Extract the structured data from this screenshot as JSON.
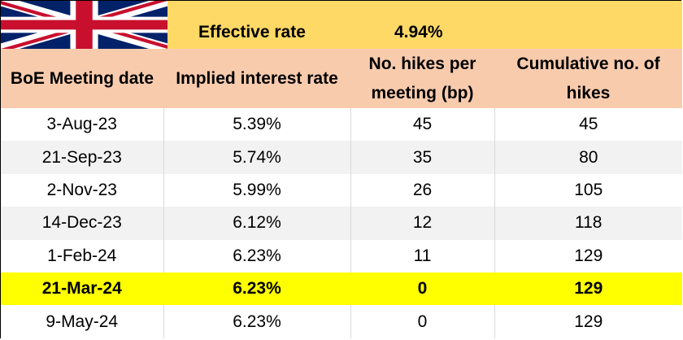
{
  "header": {
    "effective_rate_label": "Effective rate",
    "effective_rate_value": "4.94%"
  },
  "flag": {
    "country": "United Kingdom",
    "icon": "uk-flag-icon",
    "colors": {
      "blue": "#012169",
      "red": "#c8102e",
      "white": "#ffffff"
    }
  },
  "colors": {
    "banner": "#ffd966",
    "header": "#f8cbad",
    "stripe": "#f2f2f2",
    "highlight": "#ffff00"
  },
  "columns": [
    "BoE Meeting date",
    "Implied interest rate",
    "No. hikes per meeting (bp)",
    "Cumulative no. of hikes"
  ],
  "rows": [
    {
      "date": "3-Aug-23",
      "rate": "5.39%",
      "hikes": "45",
      "cumulative": "45",
      "highlight": false
    },
    {
      "date": "21-Sep-23",
      "rate": "5.74%",
      "hikes": "35",
      "cumulative": "80",
      "highlight": false
    },
    {
      "date": "2-Nov-23",
      "rate": "5.99%",
      "hikes": "26",
      "cumulative": "105",
      "highlight": false
    },
    {
      "date": "14-Dec-23",
      "rate": "6.12%",
      "hikes": "12",
      "cumulative": "118",
      "highlight": false
    },
    {
      "date": "1-Feb-24",
      "rate": "6.23%",
      "hikes": "11",
      "cumulative": "129",
      "highlight": false
    },
    {
      "date": "21-Mar-24",
      "rate": "6.23%",
      "hikes": "0",
      "cumulative": "129",
      "highlight": true
    },
    {
      "date": "9-May-24",
      "rate": "6.23%",
      "hikes": "0",
      "cumulative": "129",
      "highlight": false
    }
  ]
}
